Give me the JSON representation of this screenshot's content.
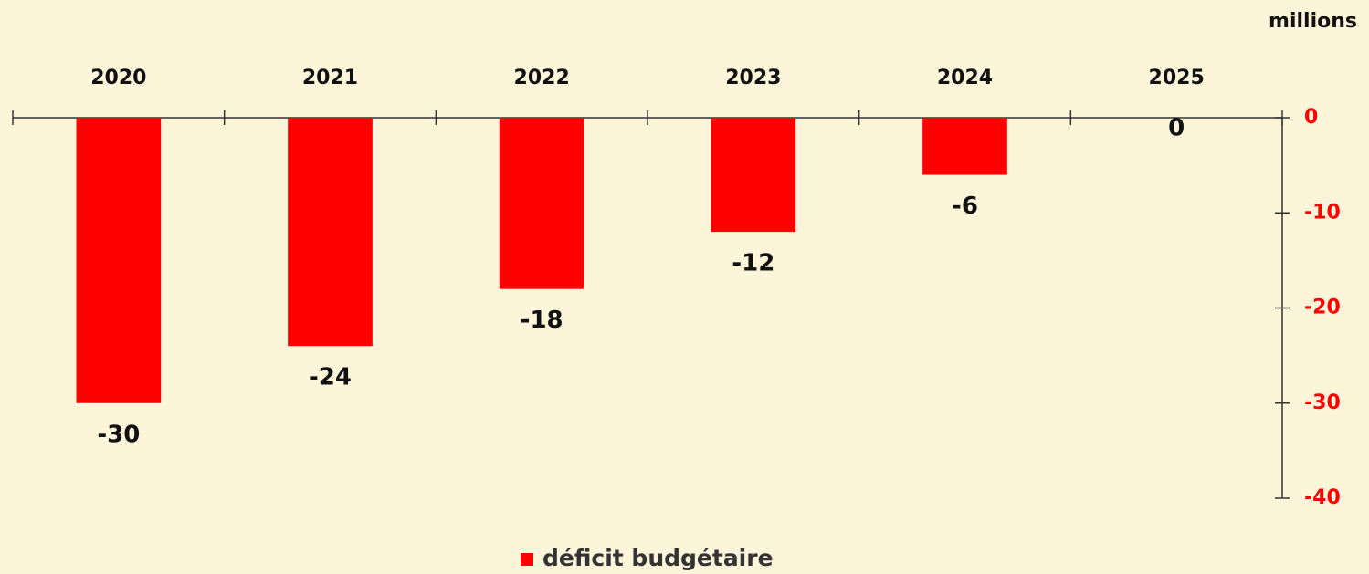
{
  "chart_data": {
    "type": "bar",
    "y_label": "millions",
    "categories": [
      "2020",
      "2021",
      "2022",
      "2023",
      "2024",
      "2025"
    ],
    "series": [
      {
        "name": "déficit budgétaire",
        "color": "#ff0000",
        "values": [
          -30,
          -24,
          -18,
          -12,
          -6,
          0
        ]
      }
    ],
    "ylim": [
      -40,
      0
    ],
    "yticks": [
      0,
      -10,
      -20,
      -30,
      -40
    ],
    "tick_color": "#ff0000",
    "legend": "bottom"
  }
}
